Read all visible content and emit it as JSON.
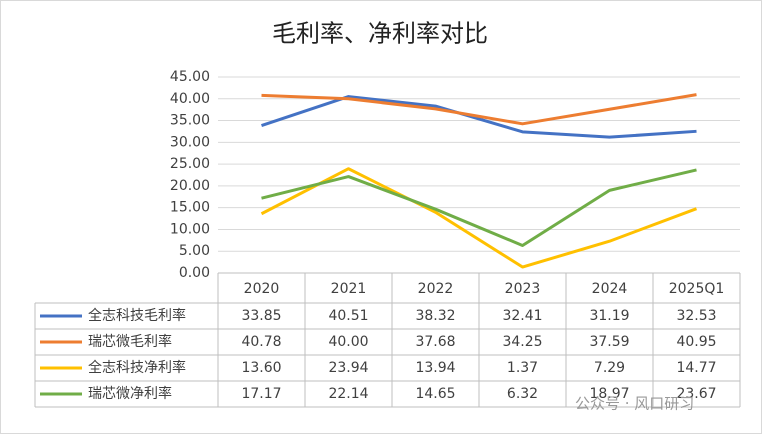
{
  "chart_data": {
    "type": "line",
    "title": "毛利率、净利率对比",
    "categories": [
      "2020",
      "2021",
      "2022",
      "2023",
      "2024",
      "2025Q1"
    ],
    "series": [
      {
        "name": "全志科技毛利率",
        "color": "#4472c4",
        "values": [
          33.85,
          40.51,
          38.32,
          32.41,
          31.19,
          32.53
        ],
        "value_labels": [
          "33.85",
          "40.51",
          "38.32",
          "32.41",
          "31.19",
          "32.53"
        ]
      },
      {
        "name": "瑞芯微毛利率",
        "color": "#ed7d31",
        "values": [
          40.78,
          40.0,
          37.68,
          34.25,
          37.59,
          40.95
        ],
        "value_labels": [
          "40.78",
          "40.00",
          "37.68",
          "34.25",
          "37.59",
          "40.95"
        ]
      },
      {
        "name": "全志科技净利率",
        "color": "#ffc000",
        "values": [
          13.6,
          23.94,
          13.94,
          1.37,
          7.29,
          14.77
        ],
        "value_labels": [
          "13.60",
          "23.94",
          "13.94",
          "1.37",
          "7.29",
          "14.77"
        ]
      },
      {
        "name": "瑞芯微净利率",
        "color": "#70ad47",
        "values": [
          17.17,
          22.14,
          14.65,
          6.32,
          18.97,
          23.67
        ],
        "value_labels": [
          "17.17",
          "22.14",
          "14.65",
          "6.32",
          "18.97",
          "23.67"
        ]
      }
    ],
    "ylim": [
      0,
      45
    ],
    "yticks": [
      {
        "value": 0,
        "label": "0.00"
      },
      {
        "value": 5,
        "label": "5.00"
      },
      {
        "value": 10,
        "label": "10.00"
      },
      {
        "value": 15,
        "label": "15.00"
      },
      {
        "value": 20,
        "label": "20.00"
      },
      {
        "value": 25,
        "label": "25.00"
      },
      {
        "value": 30,
        "label": "30.00"
      },
      {
        "value": 35,
        "label": "35.00"
      },
      {
        "value": 40,
        "label": "40.00"
      },
      {
        "value": 45,
        "label": "45.00"
      }
    ],
    "grid": true,
    "watermark": "公众号 · 风口研习"
  }
}
